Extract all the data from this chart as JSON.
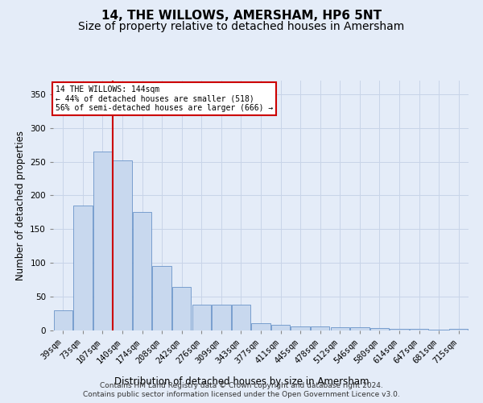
{
  "title": "14, THE WILLOWS, AMERSHAM, HP6 5NT",
  "subtitle": "Size of property relative to detached houses in Amersham",
  "xlabel": "Distribution of detached houses by size in Amersham",
  "ylabel": "Number of detached properties",
  "categories": [
    "39sqm",
    "73sqm",
    "107sqm",
    "140sqm",
    "174sqm",
    "208sqm",
    "242sqm",
    "276sqm",
    "309sqm",
    "343sqm",
    "377sqm",
    "411sqm",
    "445sqm",
    "478sqm",
    "512sqm",
    "546sqm",
    "580sqm",
    "614sqm",
    "647sqm",
    "681sqm",
    "715sqm"
  ],
  "values": [
    30,
    185,
    265,
    252,
    176,
    95,
    65,
    38,
    38,
    38,
    11,
    8,
    6,
    6,
    5,
    5,
    3,
    2,
    2,
    1,
    2
  ],
  "bar_color": "#c8d8ee",
  "bar_edge_color": "#5585c0",
  "grid_color": "#c8d4e8",
  "background_color": "#e4ecf8",
  "vline_x_index": 2.5,
  "vline_color": "#cc0000",
  "annotation_lines": [
    "14 THE WILLOWS: 144sqm",
    "← 44% of detached houses are smaller (518)",
    "56% of semi-detached houses are larger (666) →"
  ],
  "annotation_box_color": "#ffffff",
  "annotation_box_edge_color": "#cc0000",
  "footer": "Contains HM Land Registry data © Crown copyright and database right 2024.\nContains public sector information licensed under the Open Government Licence v3.0.",
  "ylim": [
    0,
    370
  ],
  "yticks": [
    0,
    50,
    100,
    150,
    200,
    250,
    300,
    350
  ],
  "title_fontsize": 11,
  "subtitle_fontsize": 10,
  "label_fontsize": 8.5,
  "tick_fontsize": 7.5,
  "footer_fontsize": 6.5
}
